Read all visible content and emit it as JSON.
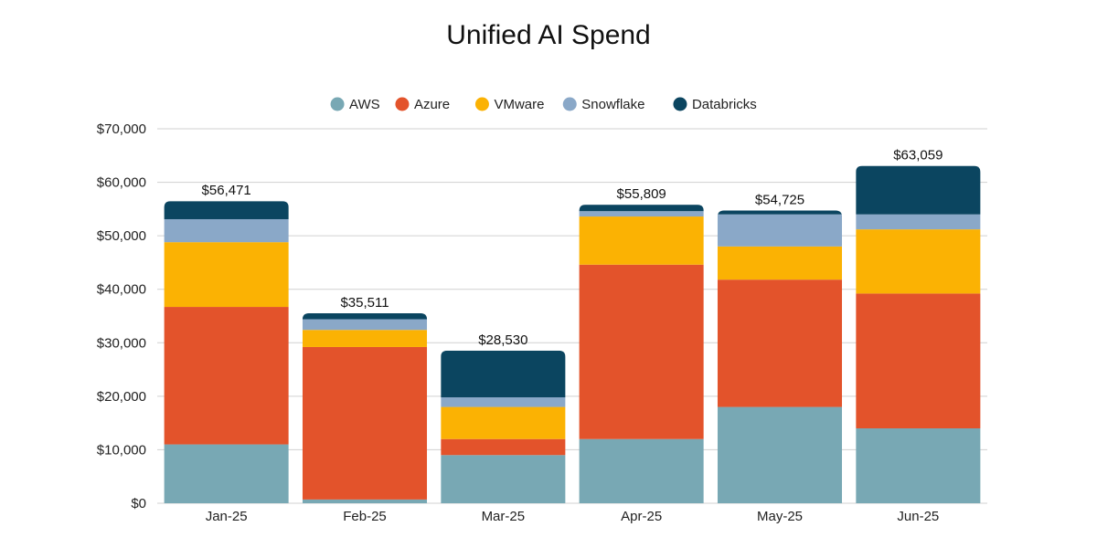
{
  "chart_data": {
    "type": "bar",
    "stacked": true,
    "title": "Unified AI Spend",
    "xlabel": "",
    "ylabel": "",
    "categories": [
      "Jan-25",
      "Feb-25",
      "Mar-25",
      "Apr-25",
      "May-25",
      "Jun-25"
    ],
    "series": [
      {
        "name": "AWS",
        "color": "#78a8b4",
        "values": [
          11000,
          700,
          9000,
          12000,
          18000,
          14000
        ]
      },
      {
        "name": "Azure",
        "color": "#e3532b",
        "values": [
          25700,
          28500,
          3000,
          32600,
          23800,
          25200
        ]
      },
      {
        "name": "VMware",
        "color": "#fbb203",
        "values": [
          12100,
          3200,
          6000,
          9000,
          6200,
          12000
        ]
      },
      {
        "name": "Snowflake",
        "color": "#8aa8c8",
        "values": [
          4300,
          2000,
          1800,
          1000,
          6000,
          2800
        ]
      },
      {
        "name": "Databricks",
        "color": "#0b4560",
        "values": [
          3371,
          1111,
          8730,
          1209,
          725,
          9059
        ]
      }
    ],
    "totals": [
      "$56,471",
      "$35,511",
      "$28,530",
      "$55,809",
      "$54,725",
      "$63,059"
    ],
    "total_values": [
      56471,
      35511,
      28530,
      55809,
      54725,
      63059
    ],
    "ylim": [
      0,
      70000
    ],
    "yticks": [
      0,
      10000,
      20000,
      30000,
      40000,
      50000,
      60000,
      70000
    ],
    "ytick_labels": [
      "$0",
      "$10,000",
      "$20,000",
      "$30,000",
      "$40,000",
      "$50,000",
      "$60,000",
      "$70,000"
    ],
    "grid": true,
    "legend_position": "top-center"
  }
}
